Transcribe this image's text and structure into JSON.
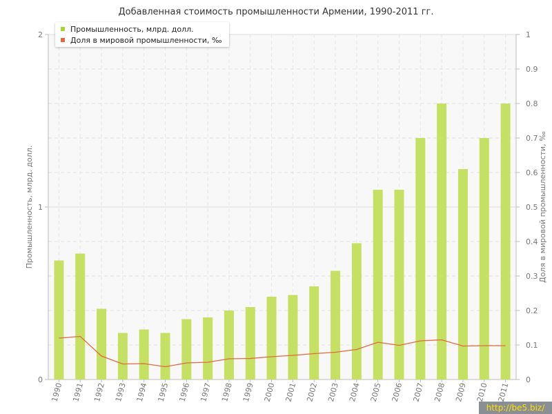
{
  "chart_data": {
    "type": "bar",
    "title": "Добавленная стоимость промышленности Армении, 1990-2011 гг.",
    "categories": [
      "1990",
      "1991",
      "1992",
      "1993",
      "1994",
      "1995",
      "1996",
      "1997",
      "1998",
      "1999",
      "2000",
      "2001",
      "2002",
      "2003",
      "2004",
      "2005",
      "2006",
      "2007",
      "2008",
      "2009",
      "2010",
      "2011"
    ],
    "series": [
      {
        "name": "Промышленность, млрд. долл.",
        "type": "bar",
        "axis": "left",
        "color": "#c5e063",
        "values": [
          0.69,
          0.73,
          0.41,
          0.27,
          0.29,
          0.27,
          0.35,
          0.36,
          0.4,
          0.42,
          0.48,
          0.49,
          0.54,
          0.63,
          0.79,
          1.1,
          1.1,
          1.4,
          1.6,
          1.22,
          1.4,
          1.6
        ]
      },
      {
        "name": "Доля в мировой промышленности, ‰",
        "type": "line",
        "axis": "right",
        "color": "#e06a3c",
        "values": [
          0.12,
          0.125,
          0.068,
          0.045,
          0.046,
          0.037,
          0.048,
          0.05,
          0.06,
          0.061,
          0.066,
          0.07,
          0.075,
          0.079,
          0.087,
          0.108,
          0.099,
          0.112,
          0.115,
          0.097,
          0.098,
          0.098
        ]
      }
    ],
    "ylabel": "Промышленность, млрд. долл.",
    "y2label": "Доля в мировой промышленности, ‰",
    "ylim": [
      0,
      2
    ],
    "y2lim": [
      0,
      1
    ],
    "yticks": [
      "0",
      "1",
      "2"
    ],
    "y2ticks": [
      "0",
      "0.1",
      "0.2",
      "0.3",
      "0.4",
      "0.5",
      "0.6",
      "0.7",
      "0.8",
      "0.9",
      "1"
    ],
    "grid": true,
    "legend_position": "top-left"
  },
  "watermark": "http://be5.biz/"
}
